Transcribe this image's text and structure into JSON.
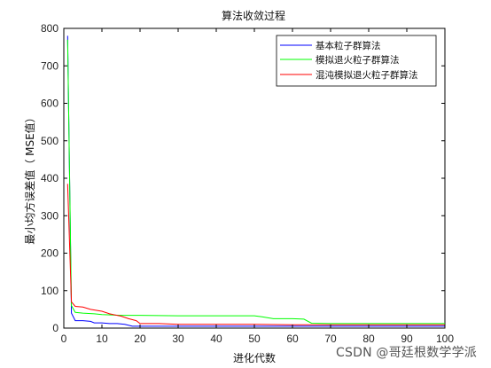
{
  "watermark": "CSDN @哥廷根数学学派",
  "chart_data": {
    "type": "line",
    "title": "算法收敛过程",
    "xlabel": "进化代数",
    "ylabel": "最小均方误差值（ MSE值）",
    "xlim": [
      0,
      100
    ],
    "ylim": [
      0,
      800
    ],
    "xticks": [
      0,
      10,
      20,
      30,
      40,
      50,
      60,
      70,
      80,
      90,
      100
    ],
    "yticks": [
      0,
      100,
      200,
      300,
      400,
      500,
      600,
      700,
      800
    ],
    "grid": false,
    "legend_position": "top-right",
    "series": [
      {
        "name": "基本粒子群算法",
        "color": "#0000ff",
        "x": [
          1,
          2,
          3,
          5,
          7,
          8,
          10,
          12,
          14,
          16,
          18,
          20,
          30,
          40,
          50,
          60,
          70,
          80,
          90,
          100
        ],
        "y": [
          780,
          40,
          20,
          20,
          18,
          14,
          14,
          12,
          12,
          10,
          5,
          5,
          5,
          5,
          5,
          5,
          5,
          5,
          5,
          5
        ]
      },
      {
        "name": "模拟退火粒子群算法",
        "color": "#00ff00",
        "x": [
          1,
          2,
          3,
          5,
          8,
          10,
          15,
          20,
          30,
          40,
          50,
          52,
          55,
          60,
          63,
          65,
          70,
          80,
          90,
          100
        ],
        "y": [
          770,
          60,
          42,
          40,
          38,
          36,
          34,
          34,
          33,
          33,
          33,
          30,
          25,
          25,
          24,
          13,
          12,
          12,
          12,
          12
        ]
      },
      {
        "name": "混沌模拟退火粒子群算法",
        "color": "#ff0000",
        "x": [
          1,
          2,
          3,
          5,
          7,
          10,
          12,
          15,
          17,
          19,
          20,
          25,
          30,
          40,
          50,
          60,
          70,
          80,
          90,
          100
        ],
        "y": [
          385,
          70,
          58,
          56,
          50,
          45,
          38,
          32,
          25,
          20,
          12,
          12,
          10,
          10,
          10,
          9,
          9,
          9,
          9,
          9
        ]
      }
    ]
  }
}
